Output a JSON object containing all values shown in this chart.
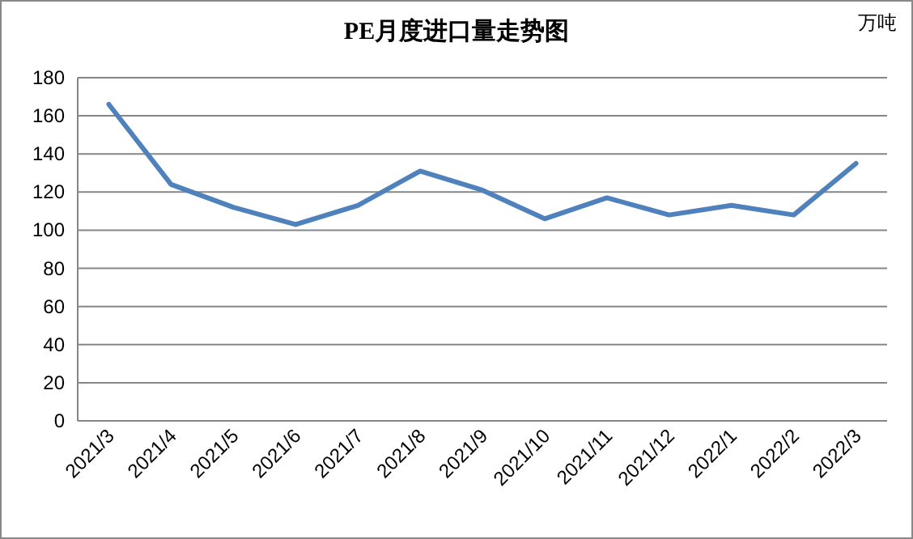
{
  "chart_data": {
    "type": "line",
    "title": "PE月度进口量走势图",
    "ylabel": "万吨",
    "categories": [
      "2021/3",
      "2021/4",
      "2021/5",
      "2021/6",
      "2021/7",
      "2021/8",
      "2021/9",
      "2021/10",
      "2021/11",
      "2021/12",
      "2022/1",
      "2022/2",
      "2022/3"
    ],
    "series": [
      {
        "color": "#4f81bd",
        "values": [
          166,
          124,
          112,
          103,
          113,
          131,
          121,
          106,
          117,
          108,
          113,
          108,
          135
        ]
      }
    ],
    "ylim": [
      0,
      180
    ],
    "yticks": [
      0,
      20,
      40,
      60,
      80,
      100,
      120,
      140,
      160,
      180
    ],
    "grid": "y",
    "marker": "none",
    "line_style": "solid"
  }
}
